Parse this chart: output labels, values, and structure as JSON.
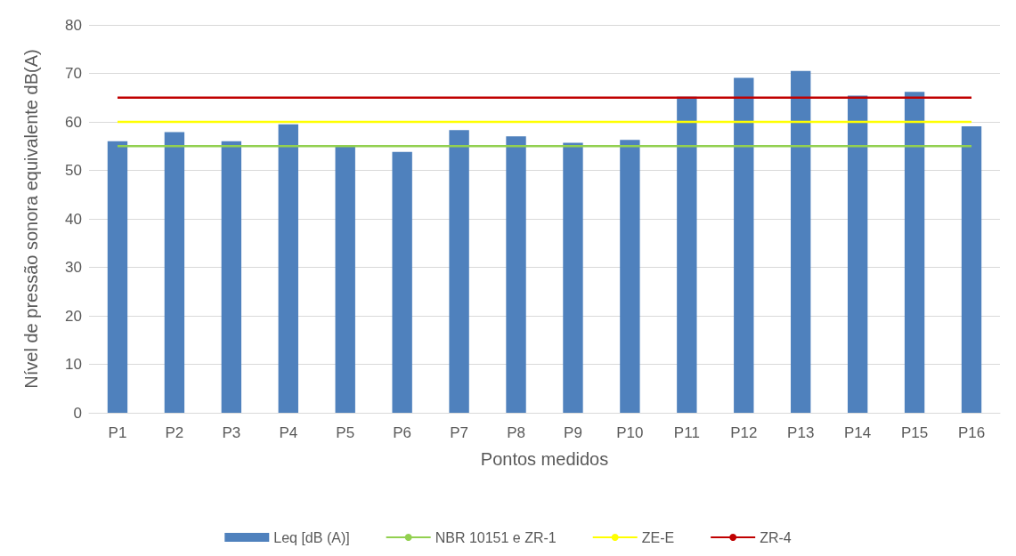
{
  "chart_data": {
    "type": "bar",
    "xlabel": "Pontos medidos",
    "ylabel": "Nível de pressão sonora equivalente dB(A)",
    "categories": [
      "P1",
      "P2",
      "P3",
      "P4",
      "P5",
      "P6",
      "P7",
      "P8",
      "P9",
      "P10",
      "P11",
      "P12",
      "P13",
      "P14",
      "P15",
      "P16"
    ],
    "series": [
      {
        "name": "Leq [dB (A)]",
        "color": "#4f81bd",
        "values": [
          56.0,
          57.9,
          56.0,
          59.5,
          55.0,
          53.8,
          58.3,
          57.0,
          55.7,
          56.3,
          65.2,
          69.1,
          70.5,
          65.4,
          66.2,
          59.1
        ]
      },
      {
        "name": "NBR 10151 e ZR-1",
        "type": "line",
        "color": "#92d050",
        "values": [
          55,
          55,
          55,
          55,
          55,
          55,
          55,
          55,
          55,
          55,
          55,
          55,
          55,
          55,
          55,
          55
        ]
      },
      {
        "name": "ZE-E",
        "type": "line",
        "color": "#ffff00",
        "values": [
          60,
          60,
          60,
          60,
          60,
          60,
          60,
          60,
          60,
          60,
          60,
          60,
          60,
          60,
          60,
          60
        ]
      },
      {
        "name": "ZR-4",
        "type": "line",
        "color": "#c00000",
        "values": [
          65,
          65,
          65,
          65,
          65,
          65,
          65,
          65,
          65,
          65,
          65,
          65,
          65,
          65,
          65,
          65
        ]
      }
    ],
    "ylim": [
      0,
      80
    ],
    "yticks": [
      0,
      10,
      20,
      30,
      40,
      50,
      60,
      70,
      80
    ],
    "grid": "y",
    "legend": "bottom",
    "marker": "none"
  }
}
